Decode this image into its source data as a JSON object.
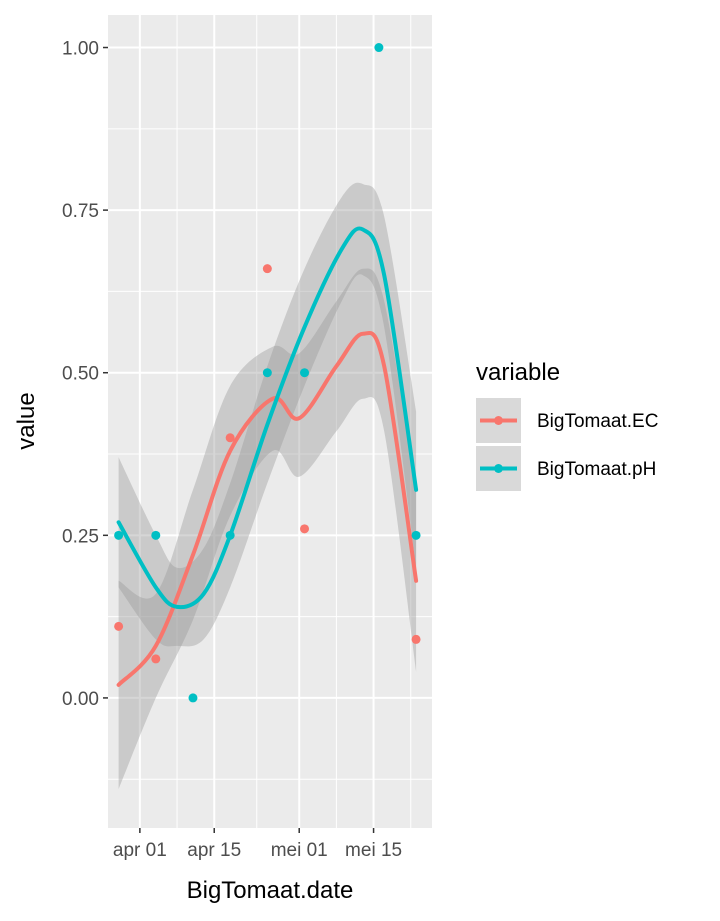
{
  "chart_data": {
    "type": "scatter",
    "title": "",
    "xlabel": "BigTomaat.date",
    "ylabel": "value",
    "x_ticks": [
      "2024-04-01",
      "2024-04-15",
      "2024-05-01",
      "2024-05-15"
    ],
    "x_tick_labels": [
      "apr 01",
      "apr 15",
      "mei 01",
      "mei 15"
    ],
    "xlim": [
      "2024-03-26",
      "2024-05-26"
    ],
    "y_ticks": [
      0.0,
      0.25,
      0.5,
      0.75,
      1.0
    ],
    "y_tick_labels": [
      "0.00",
      "0.25",
      "0.50",
      "0.75",
      "1.00"
    ],
    "ylim": [
      -0.2,
      1.05
    ],
    "grid": true,
    "smooth": "loess with confidence band",
    "legend": {
      "title": "variable",
      "position": "right"
    },
    "series": [
      {
        "name": "BigTomaat.EC",
        "color": "#F8766D",
        "points": [
          {
            "x": "2024-03-28",
            "y": 0.11
          },
          {
            "x": "2024-04-04",
            "y": 0.06
          },
          {
            "x": "2024-04-18",
            "y": 0.4
          },
          {
            "x": "2024-04-25",
            "y": 0.66
          },
          {
            "x": "2024-05-02",
            "y": 0.26
          },
          {
            "x": "2024-05-23",
            "y": 0.09
          }
        ],
        "smooth": [
          {
            "x": "2024-03-28",
            "y": 0.02,
            "lo": -0.14,
            "hi": 0.18
          },
          {
            "x": "2024-04-04",
            "y": 0.08,
            "lo": 0.0,
            "hi": 0.16
          },
          {
            "x": "2024-04-11",
            "y": 0.22,
            "lo": 0.12,
            "hi": 0.32
          },
          {
            "x": "2024-04-18",
            "y": 0.38,
            "lo": 0.28,
            "hi": 0.48
          },
          {
            "x": "2024-04-26",
            "y": 0.46,
            "lo": 0.38,
            "hi": 0.54
          },
          {
            "x": "2024-05-01",
            "y": 0.43,
            "lo": 0.34,
            "hi": 0.53
          },
          {
            "x": "2024-05-08",
            "y": 0.51,
            "lo": 0.41,
            "hi": 0.61
          },
          {
            "x": "2024-05-13",
            "y": 0.56,
            "lo": 0.46,
            "hi": 0.66
          },
          {
            "x": "2024-05-17",
            "y": 0.51,
            "lo": 0.41,
            "hi": 0.61
          },
          {
            "x": "2024-05-23",
            "y": 0.18,
            "lo": 0.04,
            "hi": 0.32
          }
        ]
      },
      {
        "name": "BigTomaat.pH",
        "color": "#00BFC4",
        "points": [
          {
            "x": "2024-03-28",
            "y": 0.25
          },
          {
            "x": "2024-04-04",
            "y": 0.25
          },
          {
            "x": "2024-04-11",
            "y": 0.0
          },
          {
            "x": "2024-04-18",
            "y": 0.25
          },
          {
            "x": "2024-04-25",
            "y": 0.5
          },
          {
            "x": "2024-05-02",
            "y": 0.5
          },
          {
            "x": "2024-05-16",
            "y": 1.0
          },
          {
            "x": "2024-05-23",
            "y": 0.25
          }
        ],
        "smooth": [
          {
            "x": "2024-03-28",
            "y": 0.27,
            "lo": 0.17,
            "hi": 0.37
          },
          {
            "x": "2024-04-04",
            "y": 0.17,
            "lo": 0.09,
            "hi": 0.25
          },
          {
            "x": "2024-04-08",
            "y": 0.14,
            "lo": 0.08,
            "hi": 0.2
          },
          {
            "x": "2024-04-13",
            "y": 0.16,
            "lo": 0.09,
            "hi": 0.23
          },
          {
            "x": "2024-04-18",
            "y": 0.25,
            "lo": 0.17,
            "hi": 0.33
          },
          {
            "x": "2024-04-25",
            "y": 0.42,
            "lo": 0.33,
            "hi": 0.51
          },
          {
            "x": "2024-05-02",
            "y": 0.57,
            "lo": 0.48,
            "hi": 0.66
          },
          {
            "x": "2024-05-09",
            "y": 0.69,
            "lo": 0.61,
            "hi": 0.77
          },
          {
            "x": "2024-05-13",
            "y": 0.72,
            "lo": 0.65,
            "hi": 0.79
          },
          {
            "x": "2024-05-17",
            "y": 0.65,
            "lo": 0.57,
            "hi": 0.74
          },
          {
            "x": "2024-05-23",
            "y": 0.32,
            "lo": 0.2,
            "hi": 0.44
          }
        ]
      }
    ]
  }
}
